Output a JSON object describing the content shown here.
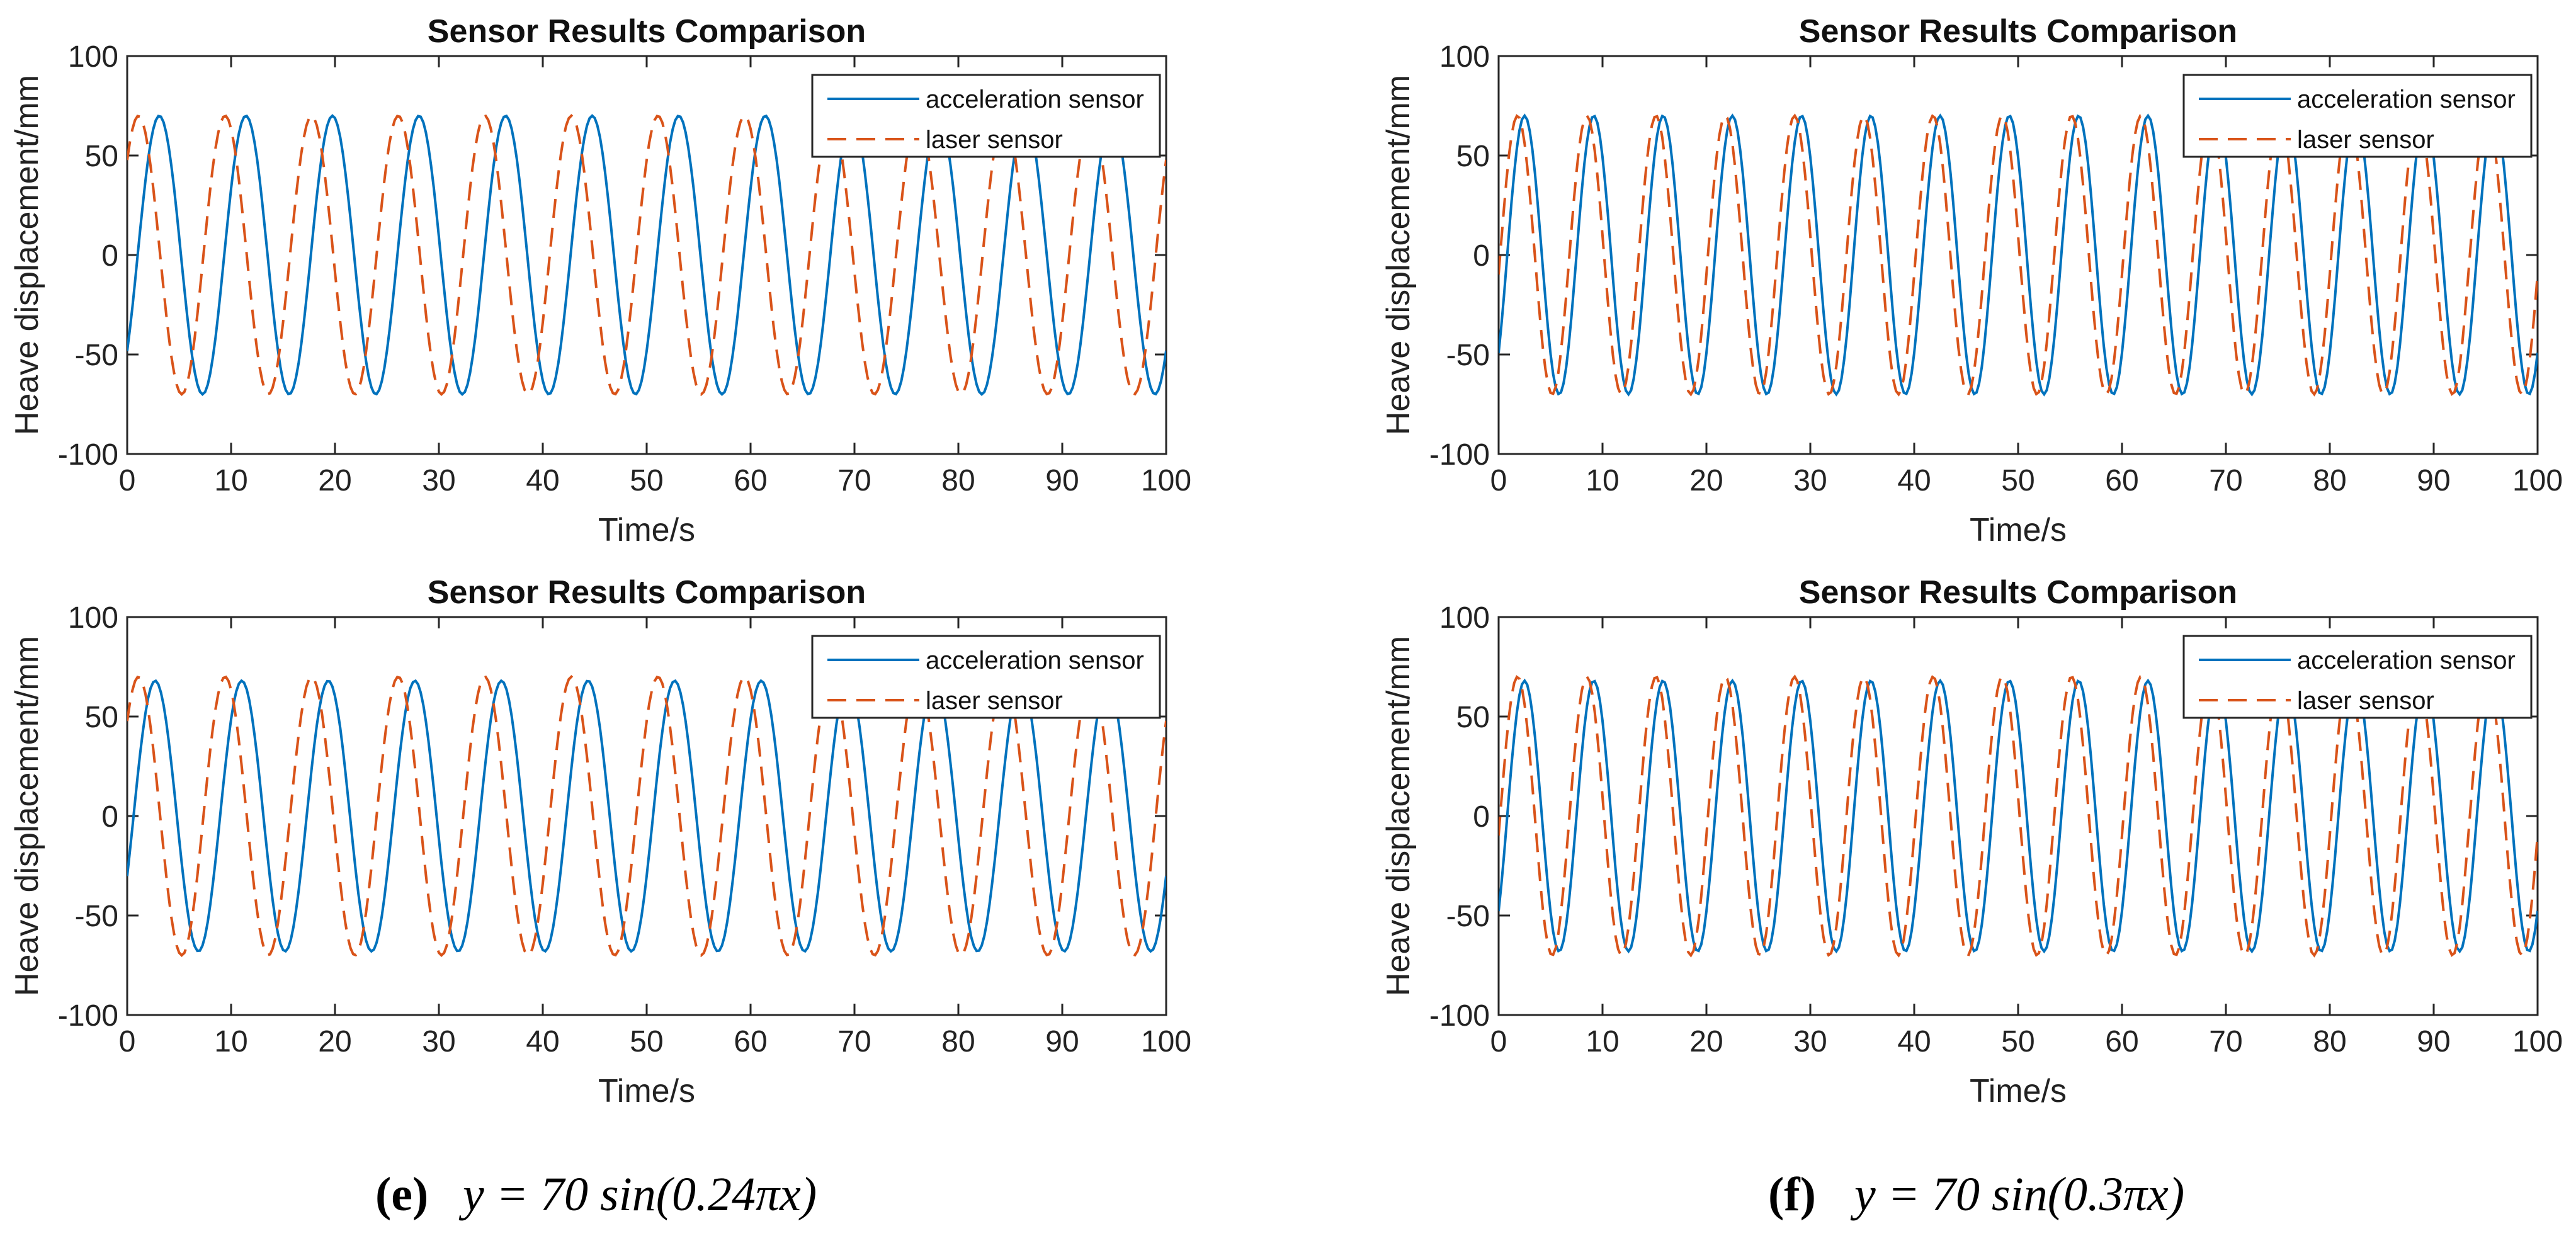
{
  "chart_data": [
    {
      "type": "line",
      "title": "Sensor Results Comparison",
      "xlabel": "Time/s",
      "ylabel": "Heave displacement/mm",
      "xlim": [
        0,
        100
      ],
      "ylim": [
        -100,
        100
      ],
      "xticks": [
        "0",
        "10",
        "20",
        "30",
        "40",
        "50",
        "60",
        "70",
        "80",
        "90",
        "100"
      ],
      "yticks": [
        "-100",
        "-50",
        "0",
        "50",
        "100"
      ],
      "legend": "top-right",
      "series": [
        {
          "name": "acceleration sensor",
          "amplitude": 70,
          "omega": 0.754,
          "phase": -0.76,
          "color": "#0072BD",
          "style": "solid"
        },
        {
          "name": "laser sensor",
          "amplitude": 70,
          "omega": 0.754,
          "phase": 0.75,
          "color": "#D95319",
          "style": "dashed"
        }
      ]
    },
    {
      "type": "line",
      "title": "Sensor Results Comparison",
      "xlabel": "Time/s",
      "ylabel": "Heave displacement/mm",
      "xlim": [
        0,
        100
      ],
      "ylim": [
        -100,
        100
      ],
      "xticks": [
        "0",
        "10",
        "20",
        "30",
        "40",
        "50",
        "60",
        "70",
        "80",
        "90",
        "100"
      ],
      "yticks": [
        "-100",
        "-50",
        "0",
        "50",
        "100"
      ],
      "legend": "top-right",
      "series": [
        {
          "name": "acceleration sensor",
          "amplitude": 70,
          "omega": 0.9425,
          "phase": -0.78,
          "color": "#0072BD",
          "style": "solid"
        },
        {
          "name": "laser sensor",
          "amplitude": 70,
          "omega": 0.9425,
          "phase": -0.14,
          "color": "#D95319",
          "style": "dashed"
        }
      ]
    },
    {
      "type": "line",
      "title": "Sensor Results Comparison",
      "xlabel": "Time/s",
      "ylabel": "Heave displacement/mm",
      "xlim": [
        0,
        100
      ],
      "ylim": [
        -100,
        100
      ],
      "xticks": [
        "0",
        "10",
        "20",
        "30",
        "40",
        "50",
        "60",
        "70",
        "80",
        "90",
        "100"
      ],
      "yticks": [
        "-100",
        "-50",
        "0",
        "50",
        "100"
      ],
      "legend": "top-right",
      "series": [
        {
          "name": "acceleration sensor",
          "amplitude": 68,
          "omega": 0.754,
          "phase": -0.46,
          "color": "#0072BD",
          "style": "solid"
        },
        {
          "name": "laser sensor",
          "amplitude": 70,
          "omega": 0.754,
          "phase": 0.75,
          "color": "#D95319",
          "style": "dashed"
        }
      ]
    },
    {
      "type": "line",
      "title": "Sensor Results Comparison",
      "xlabel": "Time/s",
      "ylabel": "Heave displacement/mm",
      "xlim": [
        0,
        100
      ],
      "ylim": [
        -100,
        100
      ],
      "xticks": [
        "0",
        "10",
        "20",
        "30",
        "40",
        "50",
        "60",
        "70",
        "80",
        "90",
        "100"
      ],
      "yticks": [
        "-100",
        "-50",
        "0",
        "50",
        "100"
      ],
      "legend": "top-right",
      "series": [
        {
          "name": "acceleration sensor",
          "amplitude": 68,
          "omega": 0.9425,
          "phase": -0.78,
          "color": "#0072BD",
          "style": "solid"
        },
        {
          "name": "laser sensor",
          "amplitude": 70,
          "omega": 0.9425,
          "phase": -0.14,
          "color": "#D95319",
          "style": "dashed"
        }
      ]
    }
  ],
  "captions": [
    {
      "letter": "(e)",
      "formula": "y = 70 sin(0.24πx)"
    },
    {
      "letter": "(f)",
      "formula": "y = 70 sin(0.3πx)"
    }
  ]
}
